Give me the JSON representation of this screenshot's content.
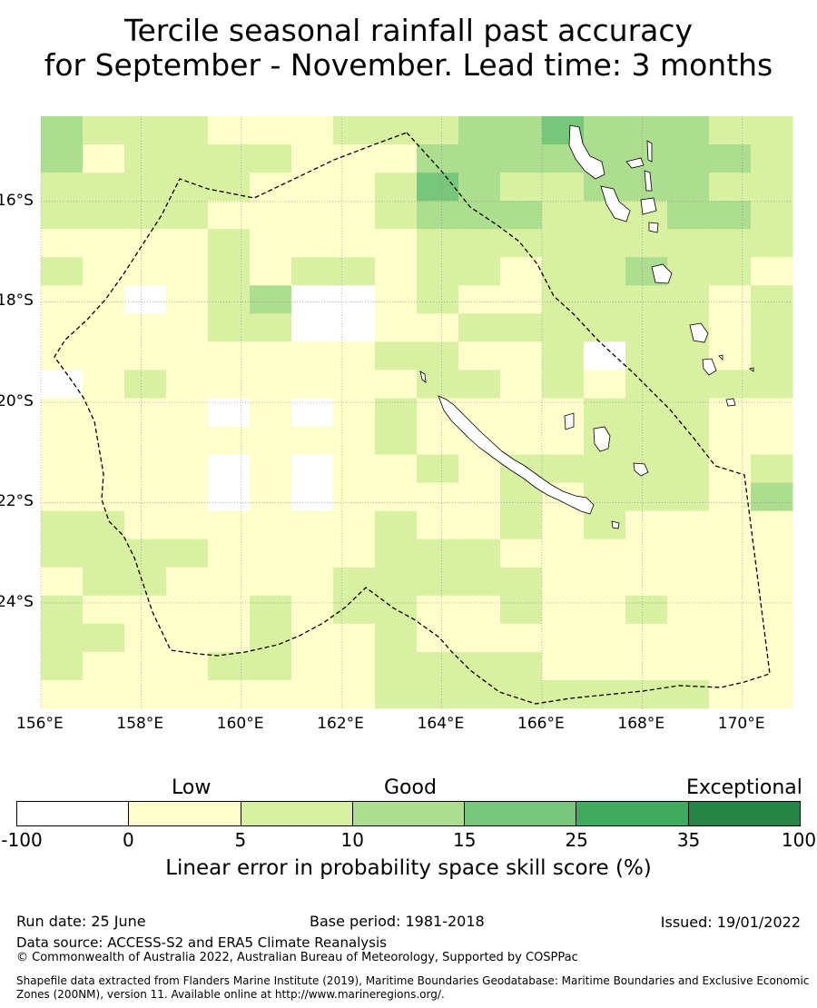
{
  "title": {
    "line1": "Tercile seasonal rainfall past accuracy",
    "line2": "for September - November. Lead time: 3 months"
  },
  "map": {
    "lon_labels": [
      "156°E",
      "158°E",
      "160°E",
      "162°E",
      "164°E",
      "166°E",
      "168°E",
      "170°E"
    ],
    "lat_labels": [
      "16°S",
      "18°S",
      "20°S",
      "22°S",
      "24°S"
    ],
    "lon_range": [
      156,
      171
    ],
    "lat_range": [
      -14.3,
      -26.1
    ],
    "boundary": "dashed",
    "grid": true
  },
  "legend": {
    "categories": {
      "low": "Low",
      "good": "Good",
      "exceptional": "Exceptional"
    },
    "ticks": [
      "-100",
      "0",
      "5",
      "10",
      "15",
      "25",
      "35",
      "100"
    ],
    "colors": [
      "#ffffff",
      "#ffffcc",
      "#d9f0a3",
      "#addd8e",
      "#78c679",
      "#41ab5d",
      "#238443"
    ],
    "title": "Linear error in probability space skill score (%)"
  },
  "footer": {
    "run_date": "Run date: 25 June",
    "base_period": "Base period: 1981-2018",
    "issued": "Issued: 19/01/2022",
    "data_source": "Data source: ACCESS-S2 and ERA5 Climate Reanalysis",
    "copyright": "© Commonwealth of Australia 2022, Australian Bureau of Meteorology, Supported by COSPPac",
    "shapefile": "Shapefile data extracted from Flanders Marine Institute (2019), Maritime Boundaries Geodatabase: Maritime Boundaries and Exclusive Economic Zones (200NM), version 11. Available online at http://www.marineregions.org/."
  }
}
